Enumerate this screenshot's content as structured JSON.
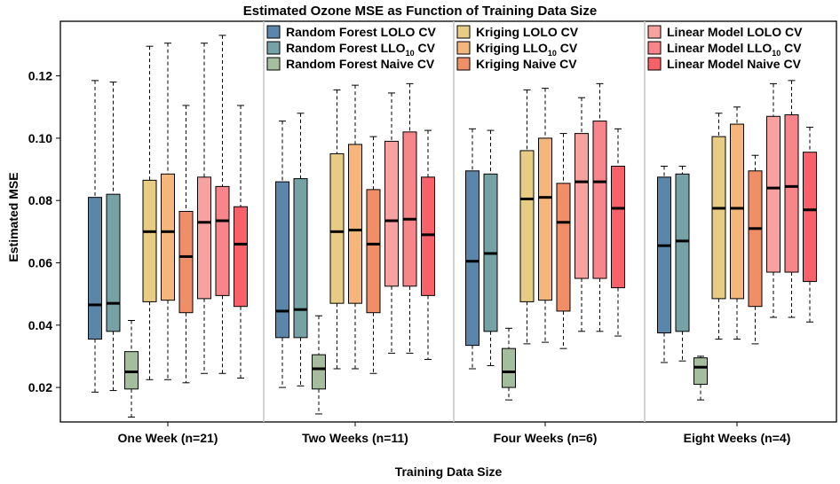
{
  "chart_data": {
    "type": "boxplot",
    "title": "Estimated Ozone MSE as Function of Training Data Size",
    "xlabel": "Training Data Size",
    "ylabel": "Estimated MSE",
    "ylim": [
      0.006,
      0.134
    ],
    "yticks": [
      "0.02",
      "0.04",
      "0.06",
      "0.08",
      "0.10",
      "0.12"
    ],
    "categories": [
      "One Week (n=21)",
      "Two Weeks (n=11)",
      "Four Weeks (n=6)",
      "Eight Weeks (n=4)"
    ],
    "grid": false,
    "legend": "top, inside panels",
    "series": [
      {
        "name": "Random Forest LOLO CV",
        "label": {
          "main": "Random Forest LOLO CV"
        },
        "color": "#5a86aa",
        "boxes": [
          {
            "min": 0.0185,
            "q1": 0.0355,
            "median": 0.0465,
            "q3": 0.081,
            "max": 0.1185
          },
          {
            "min": 0.02,
            "q1": 0.036,
            "median": 0.0445,
            "q3": 0.086,
            "max": 0.1055
          },
          {
            "min": 0.026,
            "q1": 0.0335,
            "median": 0.0605,
            "q3": 0.0895,
            "max": 0.103
          },
          {
            "min": 0.028,
            "q1": 0.0375,
            "median": 0.0655,
            "q3": 0.0875,
            "max": 0.091
          }
        ]
      },
      {
        "name": "Random Forest LLO10 CV",
        "label": {
          "main": "Random Forest LLO",
          "sub": "10",
          "after": " CV"
        },
        "color": "#76a2a5",
        "boxes": [
          {
            "min": 0.019,
            "q1": 0.038,
            "median": 0.047,
            "q3": 0.082,
            "max": 0.118
          },
          {
            "min": 0.0205,
            "q1": 0.036,
            "median": 0.045,
            "q3": 0.087,
            "max": 0.108
          },
          {
            "min": 0.027,
            "q1": 0.038,
            "median": 0.063,
            "q3": 0.0885,
            "max": 0.1025
          },
          {
            "min": 0.0285,
            "q1": 0.038,
            "median": 0.067,
            "q3": 0.0885,
            "max": 0.091
          }
        ]
      },
      {
        "name": "Random Forest Naive CV",
        "label": {
          "main": "Random Forest Naive CV"
        },
        "color": "#a4bd9d",
        "boxes": [
          {
            "min": 0.0105,
            "q1": 0.0195,
            "median": 0.025,
            "q3": 0.0315,
            "max": 0.0415
          },
          {
            "min": 0.0115,
            "q1": 0.0195,
            "median": 0.026,
            "q3": 0.0305,
            "max": 0.043
          },
          {
            "min": 0.016,
            "q1": 0.02,
            "median": 0.025,
            "q3": 0.0325,
            "max": 0.039
          },
          {
            "min": 0.016,
            "q1": 0.021,
            "median": 0.0265,
            "q3": 0.0295,
            "max": 0.03
          }
        ]
      },
      {
        "name": "Kriging LOLO CV",
        "label": {
          "main": "Kriging LOLO CV"
        },
        "color": "#e9cc84",
        "boxes": [
          {
            "min": 0.0225,
            "q1": 0.0475,
            "median": 0.07,
            "q3": 0.0865,
            "max": 0.1295
          },
          {
            "min": 0.026,
            "q1": 0.047,
            "median": 0.07,
            "q3": 0.095,
            "max": 0.1155
          },
          {
            "min": 0.034,
            "q1": 0.0475,
            "median": 0.0805,
            "q3": 0.096,
            "max": 0.1155
          },
          {
            "min": 0.0355,
            "q1": 0.0485,
            "median": 0.0775,
            "q3": 0.1005,
            "max": 0.108
          }
        ]
      },
      {
        "name": "Kriging LLO10 CV",
        "label": {
          "main": "Kriging LLO",
          "sub": "10",
          "after": " CV"
        },
        "color": "#f4b67a",
        "boxes": [
          {
            "min": 0.0225,
            "q1": 0.048,
            "median": 0.07,
            "q3": 0.0885,
            "max": 0.1305
          },
          {
            "min": 0.026,
            "q1": 0.047,
            "median": 0.0705,
            "q3": 0.098,
            "max": 0.117
          },
          {
            "min": 0.0345,
            "q1": 0.048,
            "median": 0.081,
            "q3": 0.1,
            "max": 0.116
          },
          {
            "min": 0.0355,
            "q1": 0.0485,
            "median": 0.0775,
            "q3": 0.1045,
            "max": 0.11
          }
        ]
      },
      {
        "name": "Kriging Naive CV",
        "label": {
          "main": "Kriging Naive CV"
        },
        "color": "#f08e68",
        "boxes": [
          {
            "min": 0.0215,
            "q1": 0.044,
            "median": 0.062,
            "q3": 0.0765,
            "max": 0.1105
          },
          {
            "min": 0.0245,
            "q1": 0.044,
            "median": 0.066,
            "q3": 0.0835,
            "max": 0.1005
          },
          {
            "min": 0.0325,
            "q1": 0.0445,
            "median": 0.073,
            "q3": 0.0855,
            "max": 0.1015
          },
          {
            "min": 0.034,
            "q1": 0.046,
            "median": 0.071,
            "q3": 0.0895,
            "max": 0.0945
          }
        ]
      },
      {
        "name": "Linear Model LOLO CV",
        "label": {
          "main": "Linear Model LOLO CV"
        },
        "color": "#f8a2a0",
        "boxes": [
          {
            "min": 0.0245,
            "q1": 0.0485,
            "median": 0.073,
            "q3": 0.0875,
            "max": 0.1305
          },
          {
            "min": 0.031,
            "q1": 0.0525,
            "median": 0.0735,
            "q3": 0.099,
            "max": 0.1145
          },
          {
            "min": 0.038,
            "q1": 0.055,
            "median": 0.086,
            "q3": 0.1015,
            "max": 0.113
          },
          {
            "min": 0.0425,
            "q1": 0.057,
            "median": 0.084,
            "q3": 0.107,
            "max": 0.1175
          }
        ]
      },
      {
        "name": "Linear Model LLO10 CV",
        "label": {
          "main": "Linear Model LLO",
          "sub": "10",
          "after": " CV"
        },
        "color": "#f78589",
        "boxes": [
          {
            "min": 0.0245,
            "q1": 0.0495,
            "median": 0.0735,
            "q3": 0.0845,
            "max": 0.133
          },
          {
            "min": 0.031,
            "q1": 0.0525,
            "median": 0.074,
            "q3": 0.102,
            "max": 0.1175
          },
          {
            "min": 0.038,
            "q1": 0.055,
            "median": 0.086,
            "q3": 0.1055,
            "max": 0.1175
          },
          {
            "min": 0.0425,
            "q1": 0.057,
            "median": 0.0845,
            "q3": 0.1075,
            "max": 0.1185
          }
        ]
      },
      {
        "name": "Linear Model Naive CV",
        "label": {
          "main": "Linear Model Naive CV"
        },
        "color": "#f8616a",
        "boxes": [
          {
            "min": 0.023,
            "q1": 0.046,
            "median": 0.066,
            "q3": 0.078,
            "max": 0.1105
          },
          {
            "min": 0.029,
            "q1": 0.0495,
            "median": 0.069,
            "q3": 0.0875,
            "max": 0.1025
          },
          {
            "min": 0.0365,
            "q1": 0.052,
            "median": 0.0775,
            "q3": 0.091,
            "max": 0.103
          },
          {
            "min": 0.041,
            "q1": 0.054,
            "median": 0.077,
            "q3": 0.0955,
            "max": 0.1035
          }
        ]
      }
    ]
  }
}
